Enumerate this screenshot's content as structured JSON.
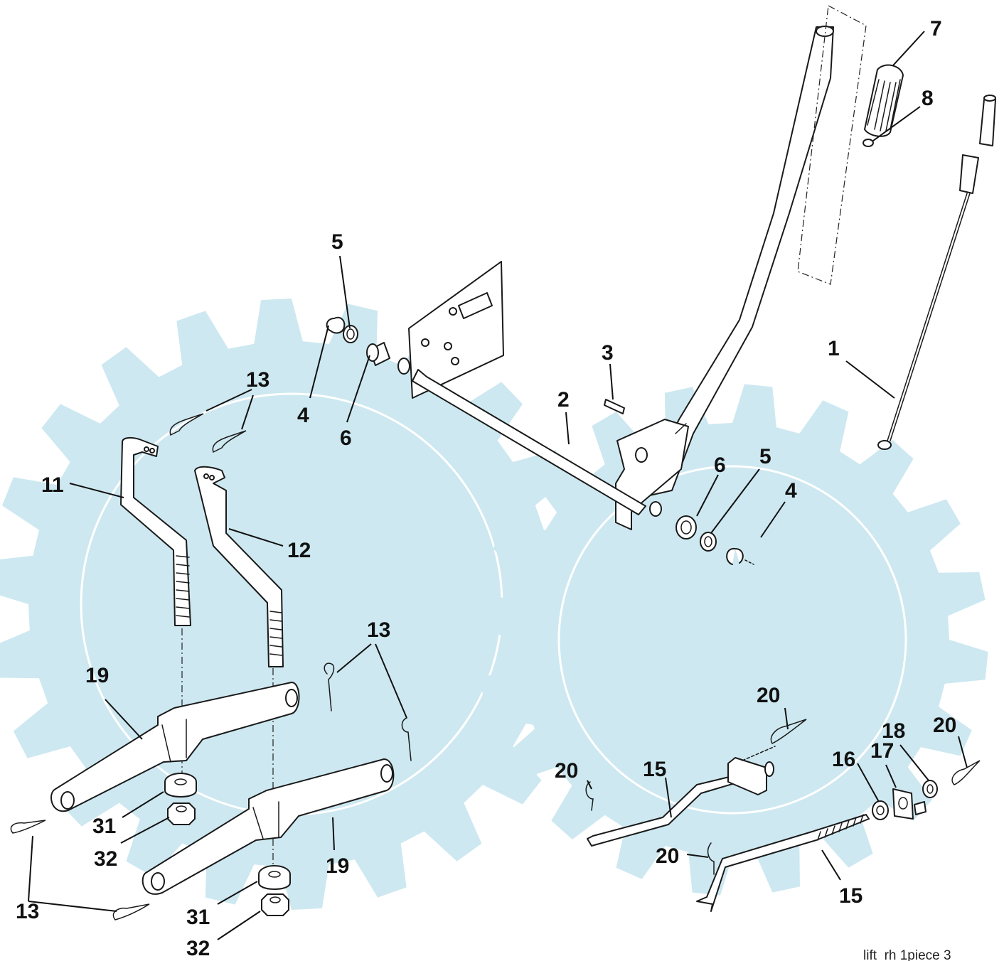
{
  "watermark": {
    "color": "#cde8f0",
    "shape": "gear-wheel-logo"
  },
  "line_color": "#1a1a1a",
  "callouts": [
    {
      "id": "c1",
      "text": "1"
    },
    {
      "id": "c2",
      "text": "2"
    },
    {
      "id": "c3",
      "text": "3"
    },
    {
      "id": "c4a",
      "text": "4"
    },
    {
      "id": "c4b",
      "text": "4"
    },
    {
      "id": "c5a",
      "text": "5"
    },
    {
      "id": "c5b",
      "text": "5"
    },
    {
      "id": "c6a",
      "text": "6"
    },
    {
      "id": "c6b",
      "text": "6"
    },
    {
      "id": "c7",
      "text": "7"
    },
    {
      "id": "c8",
      "text": "8"
    },
    {
      "id": "c11",
      "text": "11"
    },
    {
      "id": "c12",
      "text": "12"
    },
    {
      "id": "c13a",
      "text": "13"
    },
    {
      "id": "c13b",
      "text": "13"
    },
    {
      "id": "c13c",
      "text": "13"
    },
    {
      "id": "c15a",
      "text": "15"
    },
    {
      "id": "c15b",
      "text": "15"
    },
    {
      "id": "c16",
      "text": "16"
    },
    {
      "id": "c17",
      "text": "17"
    },
    {
      "id": "c18",
      "text": "18"
    },
    {
      "id": "c19a",
      "text": "19"
    },
    {
      "id": "c19b",
      "text": "19"
    },
    {
      "id": "c20a",
      "text": "20"
    },
    {
      "id": "c20b",
      "text": "20"
    },
    {
      "id": "c20c",
      "text": "20"
    },
    {
      "id": "c20d",
      "text": "20"
    },
    {
      "id": "c31a",
      "text": "31"
    },
    {
      "id": "c31b",
      "text": "31"
    },
    {
      "id": "c32a",
      "text": "32"
    },
    {
      "id": "c32b",
      "text": "32"
    }
  ],
  "footer": {
    "figure_id": "lift_rh 1piece 3"
  }
}
